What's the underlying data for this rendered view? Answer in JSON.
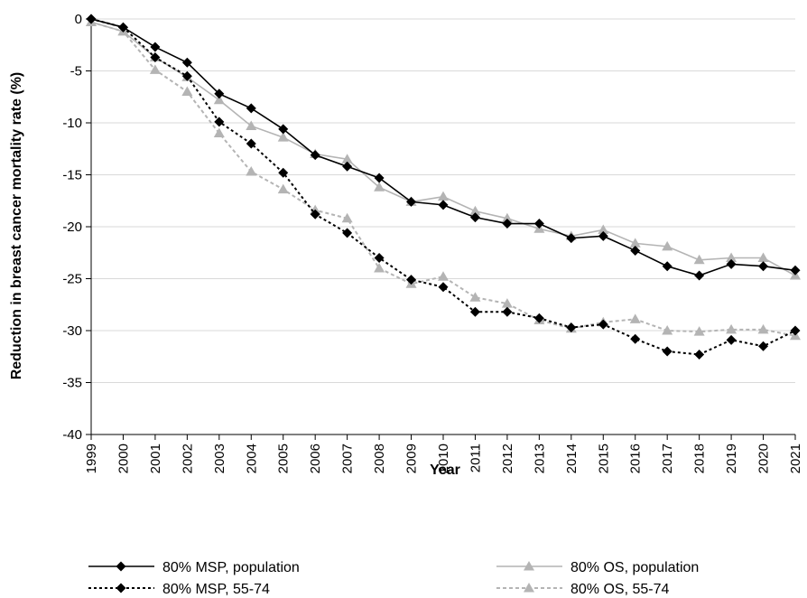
{
  "chart_data": {
    "type": "line",
    "xlabel": "Year",
    "ylabel": "Reduction in breast cancer mortality rate (%)",
    "ylim": [
      -40,
      0
    ],
    "ytick_step": 5,
    "grid": "horizontal",
    "legend_position": "bottom",
    "categories": [
      "1999",
      "2000",
      "2001",
      "2002",
      "2003",
      "2004",
      "2005",
      "2006",
      "2007",
      "2008",
      "2009",
      "2010",
      "2011",
      "2012",
      "2013",
      "2014",
      "2015",
      "2016",
      "2017",
      "2018",
      "2019",
      "2020",
      "2021"
    ],
    "series": [
      {
        "name": "80% MSP, population",
        "color": "#000000",
        "dashed": false,
        "marker": "diamond",
        "values": [
          0,
          -0.8,
          -2.7,
          -4.2,
          -7.2,
          -8.6,
          -10.6,
          -13.1,
          -14.2,
          -15.3,
          -17.6,
          -17.9,
          -19.1,
          -19.7,
          -19.7,
          -21.1,
          -20.9,
          -22.3,
          -23.8,
          -24.7,
          -23.6,
          -23.8,
          -24.2
        ]
      },
      {
        "name": "80% OS, population",
        "color": "#b4b4b4",
        "dashed": false,
        "marker": "triangle",
        "values": [
          -0.3,
          -1.2,
          -3.7,
          -5.6,
          -7.8,
          -10.3,
          -11.4,
          -13.0,
          -13.5,
          -16.2,
          -17.6,
          -17.1,
          -18.5,
          -19.2,
          -20.2,
          -20.9,
          -20.3,
          -21.6,
          -21.9,
          -23.2,
          -23.0,
          -23.0,
          -24.7
        ]
      },
      {
        "name": "80% MSP, 55-74",
        "color": "#000000",
        "dashed": true,
        "marker": "diamond",
        "values": [
          0,
          -0.8,
          -3.7,
          -5.5,
          -9.9,
          -12.0,
          -14.8,
          -18.8,
          -20.6,
          -23.0,
          -25.1,
          -25.8,
          -28.2,
          -28.2,
          -28.8,
          -29.7,
          -29.4,
          -30.8,
          -32.0,
          -32.3,
          -30.9,
          -31.5,
          -30.0
        ]
      },
      {
        "name": "80% OS, 55-74",
        "color": "#b4b4b4",
        "dashed": true,
        "marker": "triangle",
        "values": [
          -0.3,
          -1.2,
          -4.9,
          -7.0,
          -11.0,
          -14.7,
          -16.4,
          -18.4,
          -19.2,
          -24.0,
          -25.5,
          -24.8,
          -26.8,
          -27.4,
          -29.0,
          -29.8,
          -29.2,
          -28.9,
          -30.0,
          -30.1,
          -29.9,
          -29.9,
          -30.5
        ]
      }
    ]
  }
}
